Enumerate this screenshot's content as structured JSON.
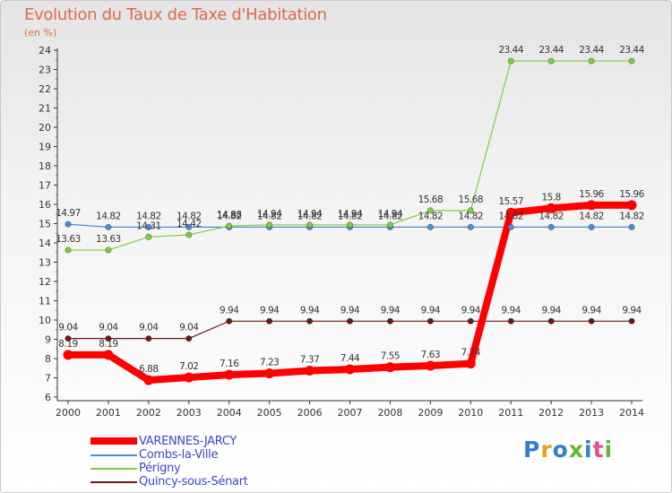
{
  "title": "Evolution du Taux de Taxe d'Habitation",
  "subtitle": "(en %)",
  "logo": "Proxiti",
  "chart_data": {
    "type": "line",
    "title": "Evolution du Taux de Taxe d'Habitation",
    "ylabel": "(en %)",
    "xlabel": "",
    "x": [
      "2000",
      "2001",
      "2002",
      "2003",
      "2004",
      "2005",
      "2006",
      "2007",
      "2008",
      "2009",
      "2010",
      "2011",
      "2012",
      "2013",
      "2014"
    ],
    "ylim": [
      6,
      24
    ],
    "yticks": [
      6,
      7,
      8,
      9,
      10,
      11,
      12,
      13,
      14,
      15,
      16,
      17,
      18,
      19,
      20,
      21,
      22,
      23,
      24
    ],
    "grid": false,
    "legend_position": "bottom-left",
    "series": [
      {
        "name": "VARENNES-JARCY",
        "color": "#ff0000",
        "values": [
          8.19,
          8.19,
          6.88,
          7.02,
          7.16,
          7.23,
          7.37,
          7.44,
          7.55,
          7.63,
          7.74,
          15.57,
          15.8,
          15.96,
          15.96
        ],
        "labels": [
          "8.19",
          "8.19",
          "6.88",
          "7.02",
          "7.16",
          "7.23",
          "7.37",
          "7.44",
          "7.55",
          "7.63",
          "7.74",
          "15.57",
          "15.8",
          "15.96",
          "15.96"
        ]
      },
      {
        "name": "Combs-la-Ville",
        "color": "#4a8fd4",
        "values": [
          14.97,
          14.82,
          14.82,
          14.82,
          14.82,
          14.82,
          14.82,
          14.82,
          14.82,
          14.82,
          14.82,
          14.82,
          14.82,
          14.82,
          14.82
        ],
        "labels": [
          "14.97",
          "14.82",
          "14.82",
          "14.82",
          "14.82",
          "14.82",
          "14.82",
          "14.82",
          "14.82",
          "14.82",
          "14.82",
          "14.82",
          "14.82",
          "14.82",
          "14.82"
        ]
      },
      {
        "name": "Périgny",
        "color": "#7bd03c",
        "values": [
          13.63,
          13.63,
          14.31,
          14.42,
          14.88,
          14.94,
          14.94,
          14.94,
          14.94,
          15.68,
          15.68,
          23.44,
          23.44,
          23.44,
          23.44
        ],
        "labels": [
          "13.63",
          "13.63",
          "14.31",
          "14.42",
          "14.88",
          "14.94",
          "14.94",
          "14.94",
          "14.94",
          "15.68",
          "15.68",
          "23.44",
          "23.44",
          "23.44",
          "23.44"
        ]
      },
      {
        "name": "Quincy-sous-Sénart",
        "color": "#701818",
        "values": [
          9.04,
          9.04,
          9.04,
          9.04,
          9.94,
          9.94,
          9.94,
          9.94,
          9.94,
          9.94,
          9.94,
          9.94,
          9.94,
          9.94,
          9.94
        ],
        "labels": [
          "9.04",
          "9.04",
          "9.04",
          "9.04",
          "9.94",
          "9.94",
          "9.94",
          "9.94",
          "9.94",
          "9.94",
          "9.94",
          "9.94",
          "9.94",
          "9.94",
          "9.94"
        ]
      }
    ]
  }
}
